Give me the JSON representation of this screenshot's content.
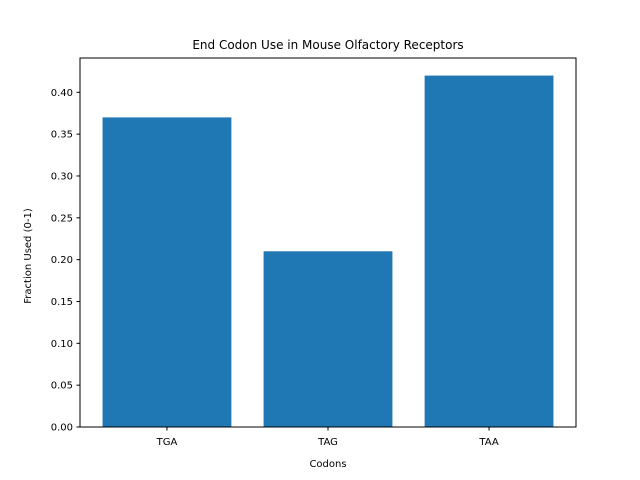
{
  "chart_data": {
    "type": "bar",
    "title": "End Codon Use in Mouse Olfactory Receptors",
    "xlabel": "Codons",
    "ylabel": "Fraction Used (0-1)",
    "categories": [
      "TGA",
      "TAG",
      "TAA"
    ],
    "values": [
      0.37,
      0.21,
      0.42
    ],
    "ylim": [
      0,
      0.441
    ],
    "yticks": [
      0.0,
      0.05,
      0.1,
      0.15,
      0.2,
      0.25,
      0.3,
      0.35,
      0.4
    ],
    "ytick_labels": [
      "0.00",
      "0.05",
      "0.10",
      "0.15",
      "0.20",
      "0.25",
      "0.30",
      "0.35",
      "0.40"
    ],
    "bar_color": "#1f77b4",
    "grid": false,
    "legend": "none"
  }
}
